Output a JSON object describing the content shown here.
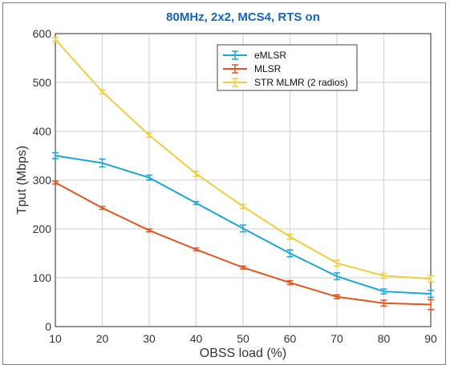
{
  "chart_data": {
    "type": "line",
    "title": "80MHz, 2x2, MCS4, RTS on",
    "xlabel": "OBSS load (%)",
    "ylabel": "Tput (Mbps)",
    "x": [
      10,
      20,
      30,
      40,
      50,
      60,
      70,
      80,
      90
    ],
    "xlim": [
      10,
      90
    ],
    "ylim": [
      0,
      600
    ],
    "xticks": [
      10,
      20,
      30,
      40,
      50,
      60,
      70,
      80,
      90
    ],
    "yticks": [
      0,
      100,
      200,
      300,
      400,
      500,
      600
    ],
    "grid": true,
    "legend_position": "top-right",
    "error_bars": true,
    "series": [
      {
        "name": "eMLSR",
        "color": "#1aa7db",
        "values": [
          350,
          335,
          305,
          253,
          201,
          150,
          103,
          72,
          67
        ],
        "errors": [
          6,
          8,
          5,
          3,
          7,
          7,
          7,
          5,
          7
        ]
      },
      {
        "name": "MLSR",
        "color": "#e8531c",
        "values": [
          295,
          243,
          197,
          158,
          121,
          90,
          61,
          48,
          45
        ],
        "errors": [
          3,
          3,
          3,
          3,
          3,
          4,
          4,
          6,
          10
        ]
      },
      {
        "name": "STR MLMR (2 radios)",
        "color": "#f2cc3c",
        "values": [
          588,
          481,
          392,
          313,
          246,
          184,
          130,
          104,
          98
        ],
        "errors": [
          4,
          4,
          4,
          5,
          4,
          5,
          6,
          5,
          6
        ]
      }
    ]
  }
}
